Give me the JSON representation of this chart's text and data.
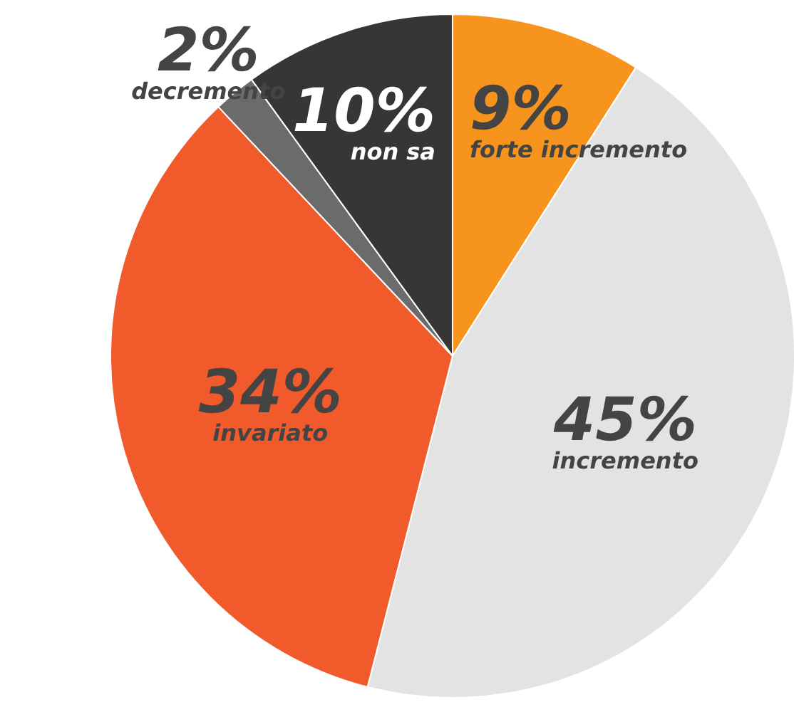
{
  "chart_data": {
    "type": "pie",
    "categories": [
      "forte incremento",
      "incremento",
      "invariato",
      "decremento",
      "non sa"
    ],
    "values": [
      9,
      45,
      34,
      2,
      10
    ],
    "value_labels": [
      "9%",
      "45%",
      "34%",
      "2%",
      "10%"
    ],
    "colors": [
      "#f7941d",
      "#e3e3e3",
      "#f15a2b",
      "#6b6b6b",
      "#363636"
    ]
  }
}
